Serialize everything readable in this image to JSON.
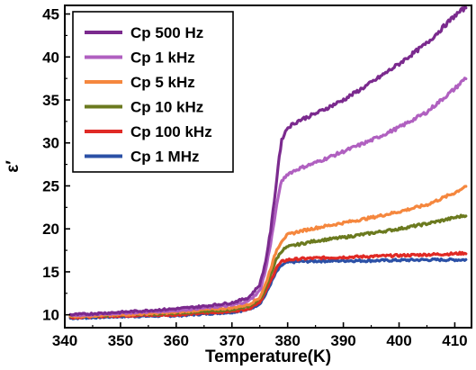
{
  "chart_data": {
    "type": "line",
    "title": "",
    "xlabel": "Temperature(K)",
    "ylabel": "ε′",
    "xlim": [
      340,
      413
    ],
    "ylim": [
      8.5,
      46
    ],
    "x_ticks": [
      340,
      350,
      360,
      370,
      380,
      390,
      400,
      410
    ],
    "y_ticks": [
      10,
      15,
      20,
      25,
      30,
      35,
      40,
      45
    ],
    "grid": false,
    "legend_position": "top-left",
    "series": [
      {
        "name": "Cp 500 Hz",
        "color": "#7b2a8e",
        "x": [
          341,
          350,
          360,
          365,
          370,
          373,
          375,
          376,
          377,
          378,
          378.5,
          379,
          380,
          382,
          385,
          390,
          395,
          400,
          405,
          410,
          412
        ],
        "y": [
          10.0,
          10.3,
          10.7,
          11.0,
          11.4,
          12.0,
          13.5,
          16.0,
          20.0,
          25.5,
          28.5,
          30.5,
          31.8,
          32.6,
          33.4,
          35.0,
          37.0,
          39.2,
          41.6,
          44.8,
          45.8
        ]
      },
      {
        "name": "Cp 1 kHz",
        "color": "#b060c0",
        "x": [
          341,
          350,
          360,
          365,
          370,
          373,
          375,
          376,
          377,
          378,
          378.5,
          379,
          380,
          382,
          385,
          390,
          395,
          400,
          405,
          410,
          412
        ],
        "y": [
          9.9,
          10.2,
          10.5,
          10.8,
          11.1,
          11.6,
          12.8,
          15.0,
          18.5,
          22.5,
          24.5,
          25.6,
          26.4,
          27.0,
          27.7,
          29.0,
          30.3,
          31.8,
          33.6,
          36.3,
          37.6
        ]
      },
      {
        "name": "Cp 5 kHz",
        "color": "#f5873e",
        "x": [
          341,
          350,
          360,
          365,
          370,
          373,
          375,
          376,
          377,
          378,
          379,
          380,
          382,
          385,
          390,
          395,
          400,
          405,
          410,
          412
        ],
        "y": [
          9.8,
          10.0,
          10.3,
          10.6,
          10.8,
          11.2,
          12.0,
          13.5,
          15.5,
          17.5,
          18.7,
          19.3,
          19.7,
          20.1,
          20.7,
          21.3,
          22.0,
          22.8,
          24.2,
          25.0
        ]
      },
      {
        "name": "Cp 10 kHz",
        "color": "#6b7a1f",
        "x": [
          341,
          350,
          360,
          365,
          370,
          373,
          375,
          376,
          377,
          378,
          379,
          380,
          382,
          385,
          390,
          395,
          400,
          405,
          410,
          412
        ],
        "y": [
          9.8,
          10.0,
          10.2,
          10.4,
          10.6,
          11.0,
          11.8,
          13.0,
          14.8,
          16.5,
          17.5,
          17.9,
          18.2,
          18.6,
          19.0,
          19.5,
          20.0,
          20.6,
          21.3,
          21.6
        ]
      },
      {
        "name": "Cp 100 kHz",
        "color": "#e02a25",
        "x": [
          341,
          350,
          360,
          365,
          370,
          373,
          375,
          376,
          377,
          378,
          379,
          380,
          382,
          385,
          390,
          395,
          400,
          405,
          410,
          412
        ],
        "y": [
          9.7,
          9.9,
          10.0,
          10.2,
          10.4,
          10.7,
          11.5,
          12.6,
          14.0,
          15.5,
          16.2,
          16.4,
          16.5,
          16.6,
          16.7,
          16.8,
          16.9,
          17.0,
          17.1,
          17.2
        ]
      },
      {
        "name": "Cp 1 MHz",
        "color": "#2b50a6",
        "x": [
          341,
          350,
          360,
          365,
          370,
          373,
          375,
          376,
          377,
          378,
          379,
          380,
          382,
          385,
          390,
          395,
          400,
          405,
          410,
          412
        ],
        "y": [
          9.6,
          9.8,
          9.9,
          10.1,
          10.3,
          10.6,
          11.3,
          12.3,
          13.7,
          15.0,
          15.8,
          16.1,
          16.2,
          16.25,
          16.3,
          16.3,
          16.35,
          16.4,
          16.4,
          16.4
        ]
      }
    ]
  }
}
